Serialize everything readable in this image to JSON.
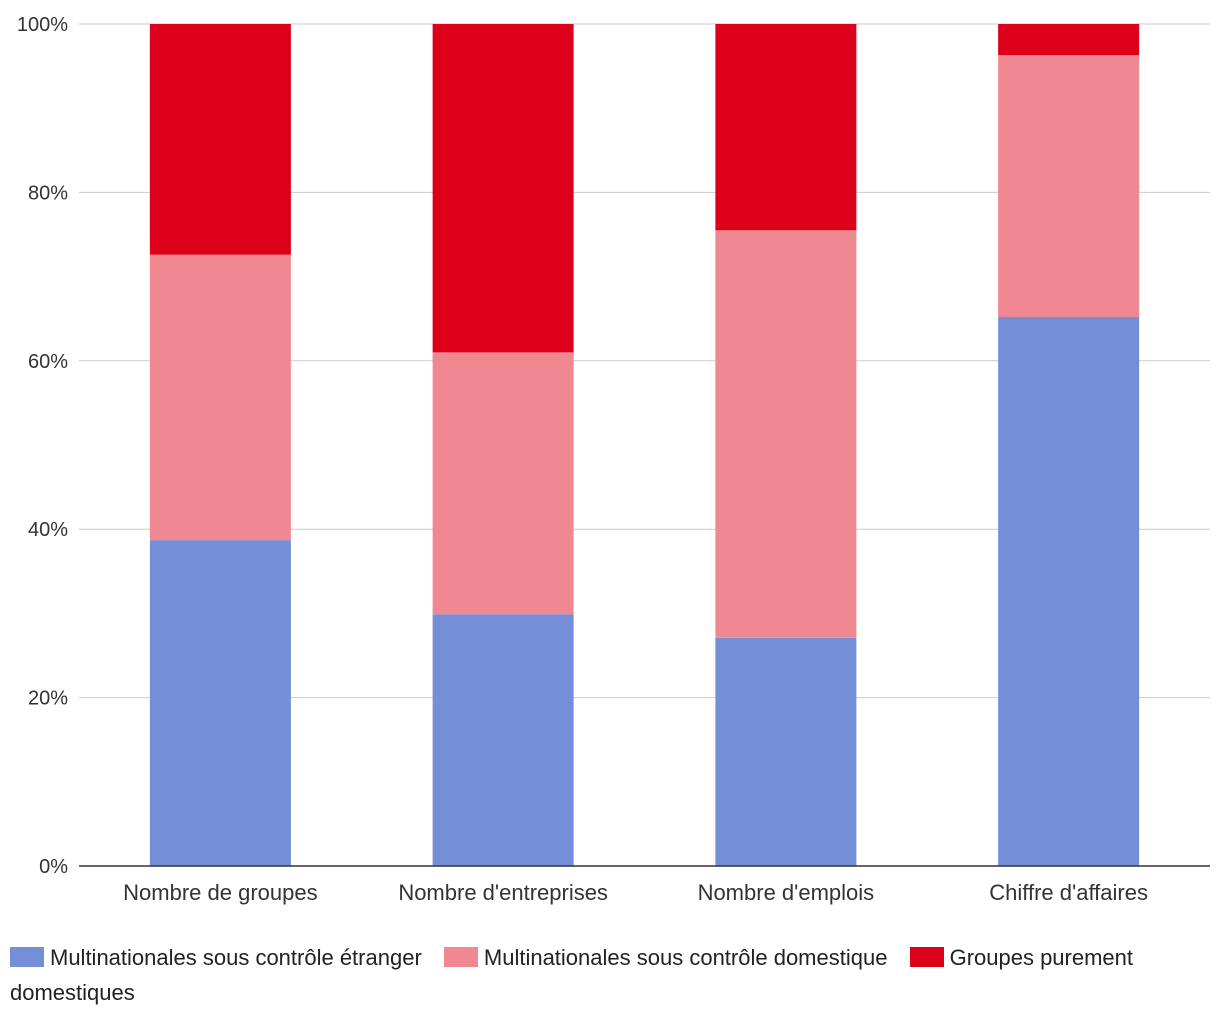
{
  "chart_data": {
    "type": "bar",
    "stacked": true,
    "percent": true,
    "categories": [
      "Nombre de groupes",
      "Nombre d'entreprises",
      "Nombre d'emplois",
      "Chiffre d'affaires"
    ],
    "series": [
      {
        "name": "Multinationales sous contrôle étranger",
        "color": "#748ed7",
        "values": [
          38.7,
          29.9,
          27.1,
          65.2
        ]
      },
      {
        "name": "Multinationales sous contrôle domestique",
        "color": "#f08892",
        "values": [
          33.9,
          31.1,
          48.4,
          31.1
        ]
      },
      {
        "name": "Groupes purement domestiques",
        "color": "#dc001a",
        "values": [
          27.4,
          39.0,
          24.5,
          3.7
        ]
      }
    ],
    "yticks": [
      "0%",
      "20%",
      "40%",
      "60%",
      "80%",
      "100%"
    ],
    "ylim": [
      0,
      100
    ],
    "grid": true,
    "legend_position": "bottom"
  }
}
